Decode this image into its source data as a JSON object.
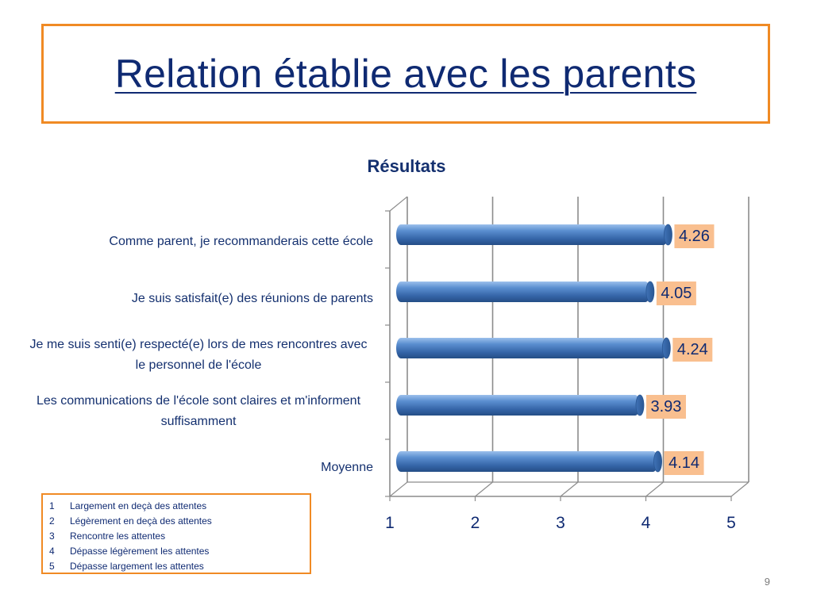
{
  "slide": {
    "title": "Relation établie avec les parents",
    "page_number": "9"
  },
  "legend": {
    "items": [
      {
        "num": "1",
        "text": "Largement en deçà des attentes"
      },
      {
        "num": "2",
        "text": "Légèrement en deçà des attentes"
      },
      {
        "num": "3",
        "text": "Rencontre les attentes"
      },
      {
        "num": "4",
        "text": "Dépasse légèrement les attentes"
      },
      {
        "num": "5",
        "text": "Dépasse largement les attentes"
      }
    ]
  },
  "colors": {
    "accent_border": "#f08a24",
    "title_text": "#0f2a72",
    "bar_fill": "#4a7fc1",
    "data_label_bg": "#f9bf8f"
  },
  "chart_data": {
    "type": "bar",
    "orientation": "horizontal",
    "title": "Résultats",
    "categories": [
      "Comme parent, je recommanderais cette école",
      "Je suis satisfait(e) des réunions de parents",
      "Je me suis senti(e) respecté(e) lors de mes rencontres avec le personnel de l'école",
      "Les communications de l'école sont claires et m'informent suffisamment",
      "Moyenne"
    ],
    "values": [
      4.26,
      4.05,
      4.24,
      3.93,
      4.14
    ],
    "data_labels": [
      "4.26",
      "4.05",
      "4.24",
      "3.93",
      "4.14"
    ],
    "xlim": [
      1,
      5
    ],
    "xticks": [
      "1",
      "2",
      "3",
      "4",
      "5"
    ],
    "grid": true,
    "style": "3d-cylinder"
  }
}
